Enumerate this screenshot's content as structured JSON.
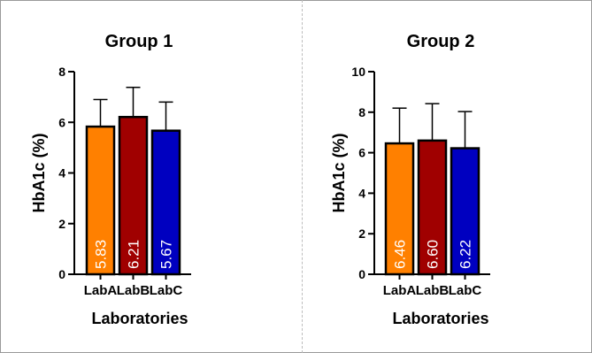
{
  "chart_data": [
    {
      "type": "bar",
      "title": "Group 1",
      "xlabel": "Laboratories",
      "ylabel": "HbA1c (%)",
      "ylim": [
        0,
        8
      ],
      "yticks": [
        0,
        2,
        4,
        6,
        8
      ],
      "categories": [
        "LabA",
        "LabB",
        "LabC"
      ],
      "values": [
        5.83,
        6.21,
        5.67
      ],
      "value_labels": [
        "5.83",
        "6.21",
        "5.67"
      ],
      "error_upper": [
        6.9,
        7.38,
        6.8
      ],
      "colors": [
        "#ff8000",
        "#a00000",
        "#0000c0"
      ],
      "grid": false,
      "legend": "none"
    },
    {
      "type": "bar",
      "title": "Group 2",
      "xlabel": "Laboratories",
      "ylabel": "HbA1c (%)",
      "ylim": [
        0,
        10
      ],
      "yticks": [
        0,
        2,
        4,
        6,
        8,
        10
      ],
      "categories": [
        "LabA",
        "LabB",
        "LabC"
      ],
      "values": [
        6.46,
        6.6,
        6.22
      ],
      "value_labels": [
        "6.46",
        "6.60",
        "6.22"
      ],
      "error_upper": [
        8.2,
        8.42,
        8.03
      ],
      "colors": [
        "#ff8000",
        "#a00000",
        "#0000c0"
      ],
      "grid": false,
      "legend": "none"
    }
  ]
}
